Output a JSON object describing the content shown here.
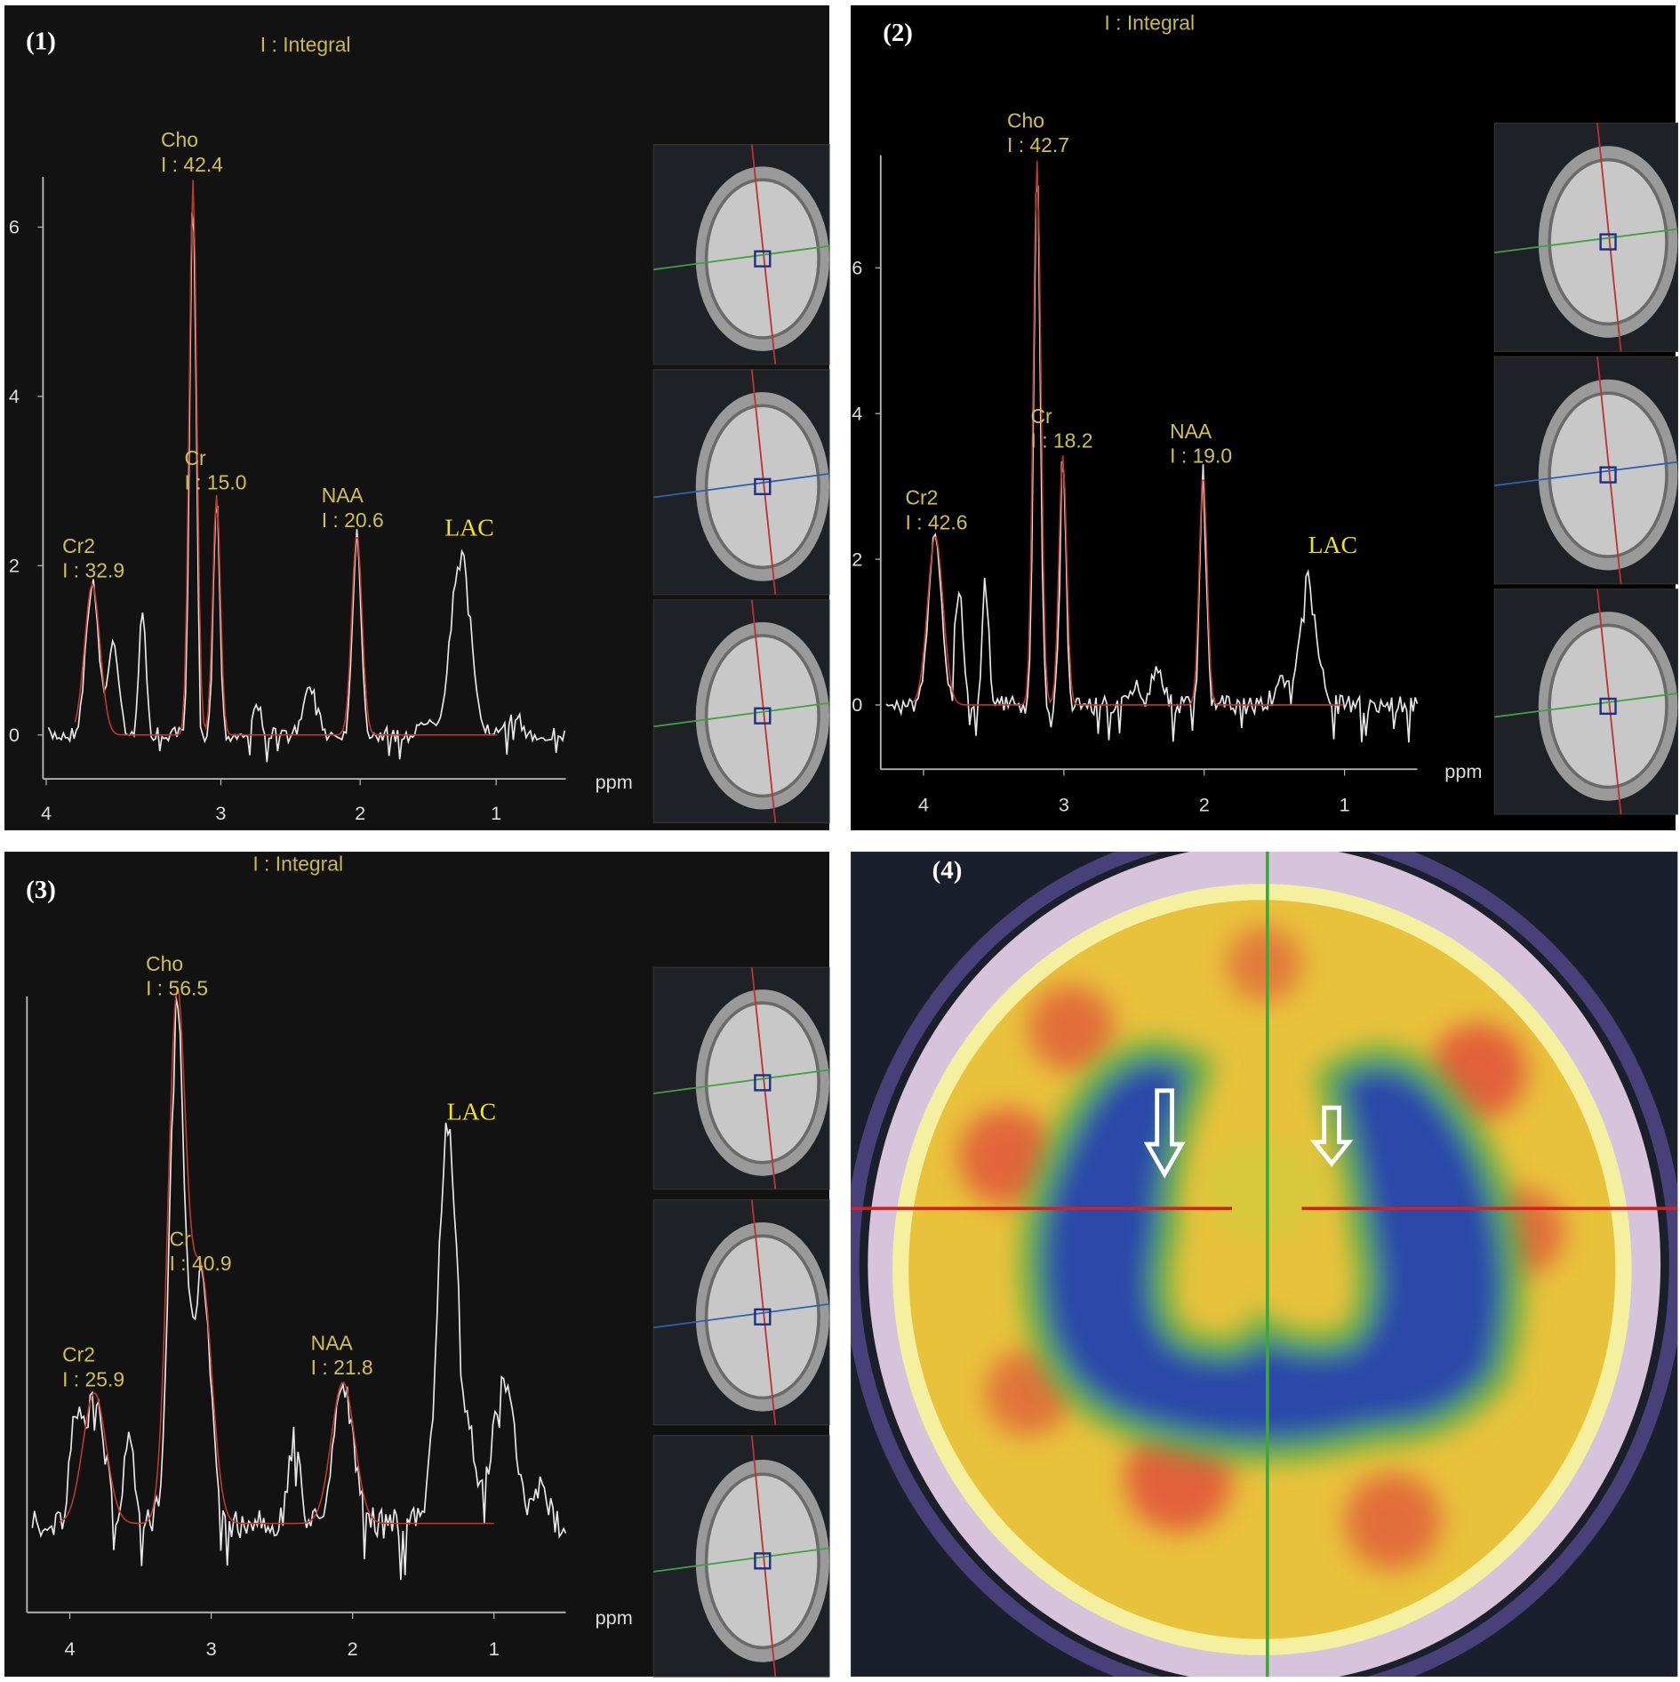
{
  "panels": [
    {
      "label": "(1)",
      "header": "I : Integral",
      "peaks": [
        {
          "name": "Cho",
          "integral": "I : 42.4"
        },
        {
          "name": "Cr",
          "integral": "I : 15.0"
        },
        {
          "name": "Cr2",
          "integral": "I : 32.9"
        },
        {
          "name": "NAA",
          "integral": "I : 20.6"
        }
      ],
      "lac": "LAC",
      "x_ticks": [
        "4",
        "3",
        "2",
        "1"
      ],
      "y_ticks": [
        "6",
        "4",
        "2",
        "0"
      ],
      "x_unit": "ppm"
    },
    {
      "label": "(2)",
      "header": "I : Integral",
      "peaks": [
        {
          "name": "Cho",
          "integral": "I : 42.7"
        },
        {
          "name": "Cr",
          "integral": "I : 18.2"
        },
        {
          "name": "Cr2",
          "integral": "I : 42.6"
        },
        {
          "name": "NAA",
          "integral": "I : 19.0"
        }
      ],
      "lac": "LAC",
      "x_ticks": [
        "4",
        "3",
        "2",
        "1"
      ],
      "y_ticks": [
        "6",
        "4",
        "2",
        "0"
      ],
      "x_unit": "ppm"
    },
    {
      "label": "(3)",
      "header": "I : Integral",
      "peaks": [
        {
          "name": "Cho",
          "integral": "I : 56.5"
        },
        {
          "name": "Cr",
          "integral": "I : 40.9"
        },
        {
          "name": "Cr2",
          "integral": "I : 25.9"
        },
        {
          "name": "NAA",
          "integral": "I : 21.8"
        }
      ],
      "lac": "LAC",
      "x_ticks": [
        "4",
        "3",
        "2",
        "1"
      ],
      "x_unit": "ppm"
    }
  ],
  "pet": {
    "label": "(4)"
  }
}
